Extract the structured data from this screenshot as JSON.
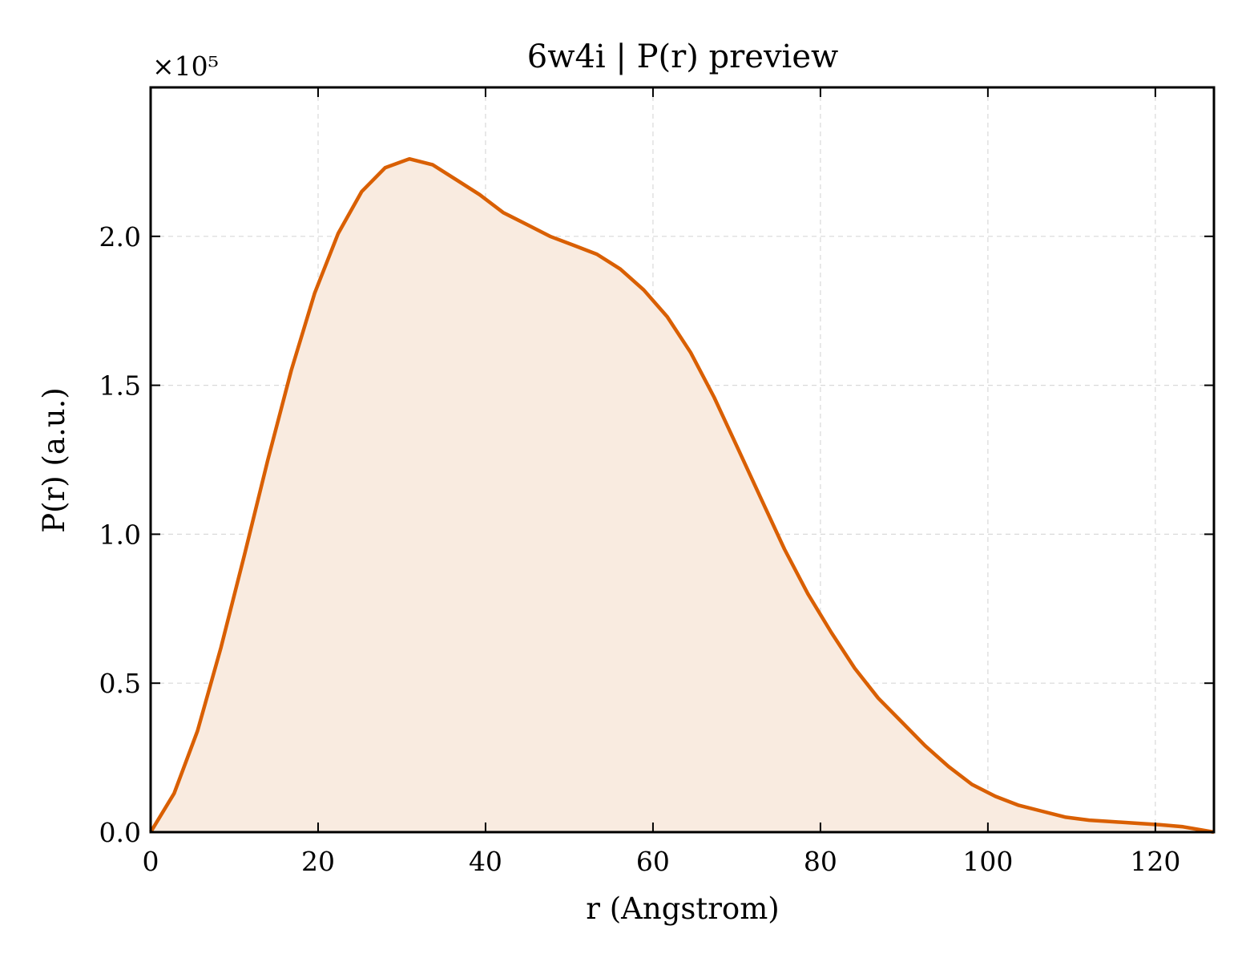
{
  "chart_data": {
    "type": "area",
    "title": "6w4i | P(r) preview",
    "xlabel": "r (Angstrom)",
    "ylabel": "P(r) (a.u.)",
    "y_multiplier_label": "×10⁵",
    "y_scale": 100000,
    "xlim": [
      0,
      127
    ],
    "ylim": [
      0,
      2.5
    ],
    "xticks": [
      0,
      20,
      40,
      60,
      80,
      100,
      120
    ],
    "yticks": [
      0.0,
      0.5,
      1.0,
      1.5,
      2.0
    ],
    "grid": true,
    "line_color": "#d95f02",
    "fill_color": "#f9ebe0",
    "series": [
      {
        "x": [
          0,
          2.8,
          5.6,
          8.4,
          11.2,
          14.0,
          16.8,
          19.6,
          22.4,
          25.2,
          28.0,
          30.9,
          33.7,
          36.5,
          39.3,
          42.1,
          44.9,
          47.7,
          50.5,
          53.3,
          56.1,
          58.9,
          61.7,
          64.5,
          67.3,
          70.1,
          72.9,
          75.7,
          78.5,
          81.3,
          84.1,
          86.9,
          89.7,
          92.5,
          95.3,
          98.1,
          100.9,
          103.7,
          106.5,
          109.3,
          112.1,
          114.9,
          117.7,
          120.5,
          123.3,
          127.0
        ],
        "y": [
          0.0,
          0.13,
          0.34,
          0.62,
          0.93,
          1.25,
          1.55,
          1.81,
          2.01,
          2.15,
          2.23,
          2.26,
          2.24,
          2.19,
          2.14,
          2.08,
          2.04,
          2.0,
          1.97,
          1.94,
          1.89,
          1.82,
          1.73,
          1.61,
          1.46,
          1.29,
          1.12,
          0.95,
          0.8,
          0.67,
          0.55,
          0.45,
          0.37,
          0.29,
          0.22,
          0.16,
          0.12,
          0.09,
          0.07,
          0.05,
          0.04,
          0.035,
          0.03,
          0.025,
          0.018,
          0.0
        ]
      }
    ]
  }
}
